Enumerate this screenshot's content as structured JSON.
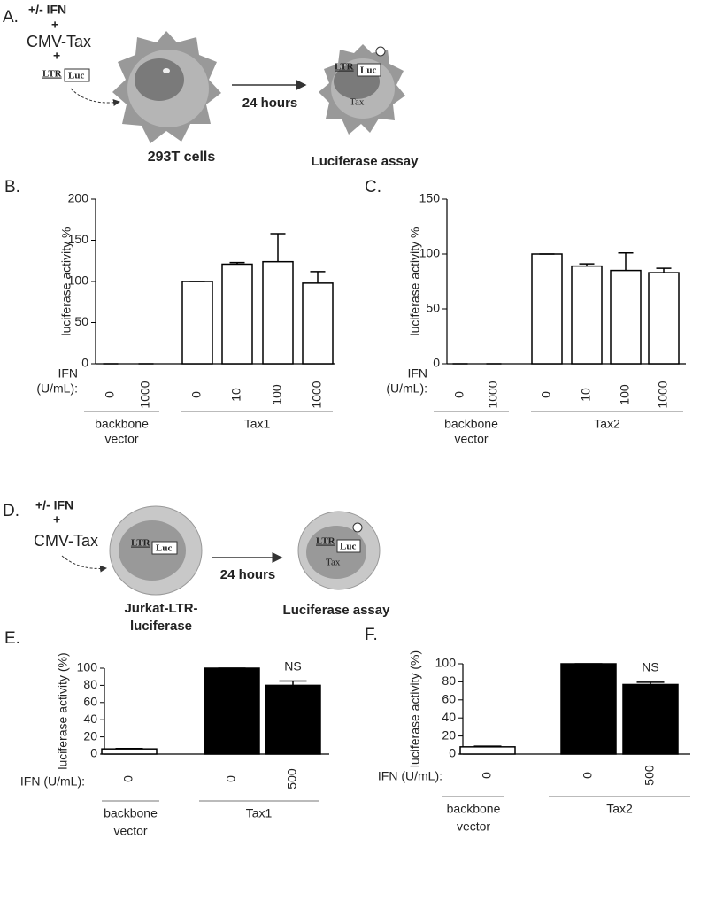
{
  "diagram_a": {
    "label": "A.",
    "ifn": "+/- IFN",
    "plus1": "+",
    "plasmid": "CMV-Tax",
    "plus2": "+",
    "ltr": "LTR",
    "luc": "Luc",
    "time": "24 hours",
    "cell": "293T cells",
    "assay": "Luciferase assay",
    "ltr2": "LTR",
    "luc2": "Luc",
    "tax": "Tax"
  },
  "diagram_d": {
    "label": "D.",
    "ifn": "+/- IFN",
    "plus1": "+",
    "plasmid": "CMV-Tax",
    "ltr": "LTR",
    "luc": "Luc",
    "time": "24 hours",
    "cell": [
      "Jurkat-LTR-",
      "luciferase"
    ],
    "assay": "Luciferase assay",
    "ltr2": "LTR",
    "luc2": "Luc",
    "tax": "Tax"
  },
  "chart_data": [
    {
      "type": "bar",
      "panel": "B.",
      "ylabel": "luciferase activity %",
      "x_prefix": [
        "IFN",
        "(U/mL):"
      ],
      "ylim": [
        0,
        200
      ],
      "yticks": [
        0,
        50,
        100,
        150,
        200
      ],
      "edgecolor": "#000000",
      "groups": [
        {
          "name": [
            "backbone",
            "vector"
          ],
          "categories": [
            "0",
            "1000"
          ],
          "values": [
            0,
            0
          ],
          "errors": [
            0,
            0
          ],
          "colors": [
            "#ffffff",
            "#ffffff"
          ]
        },
        {
          "name": [
            "Tax1"
          ],
          "categories": [
            "0",
            "10",
            "100",
            "1000"
          ],
          "values": [
            100,
            121,
            124,
            98
          ],
          "errors": [
            0,
            2,
            34,
            14
          ],
          "colors": [
            "#ffffff",
            "#ffffff",
            "#ffffff",
            "#ffffff"
          ]
        }
      ]
    },
    {
      "type": "bar",
      "panel": "C.",
      "ylabel": "luciferase activity %",
      "x_prefix": [
        "IFN",
        "(U/mL):"
      ],
      "ylim": [
        0,
        150
      ],
      "yticks": [
        0,
        50,
        100,
        150
      ],
      "edgecolor": "#000000",
      "groups": [
        {
          "name": [
            "backbone",
            "vector"
          ],
          "categories": [
            "0",
            "1000"
          ],
          "values": [
            0,
            0
          ],
          "errors": [
            0,
            0
          ],
          "colors": [
            "#ffffff",
            "#ffffff"
          ]
        },
        {
          "name": [
            "Tax2"
          ],
          "categories": [
            "0",
            "10",
            "100",
            "1000"
          ],
          "values": [
            100,
            89,
            85,
            83
          ],
          "errors": [
            0,
            2,
            16,
            4
          ],
          "colors": [
            "#ffffff",
            "#ffffff",
            "#ffffff",
            "#ffffff"
          ]
        }
      ]
    },
    {
      "type": "bar",
      "panel": "E.",
      "ylabel": "luciferase activity  (%)",
      "x_prefix": [
        "IFN (U/mL):"
      ],
      "ylim": [
        0,
        100
      ],
      "yticks": [
        0,
        20,
        40,
        60,
        80,
        100
      ],
      "edgecolor": "#000000",
      "groups": [
        {
          "name": [
            "backbone",
            "vector"
          ],
          "categories": [
            "0"
          ],
          "values": [
            6
          ],
          "errors": [
            0.5
          ],
          "colors": [
            "#ffffff"
          ]
        },
        {
          "name": [
            "Tax1"
          ],
          "categories": [
            "0",
            "500"
          ],
          "values": [
            100,
            80
          ],
          "errors": [
            0,
            5
          ],
          "colors": [
            "#000000",
            "#000000"
          ],
          "notes": [
            null,
            "NS"
          ]
        }
      ]
    },
    {
      "type": "bar",
      "panel": "F.",
      "ylabel": "luciferase activity  (%)",
      "x_prefix": [
        "IFN (U/mL):"
      ],
      "ylim": [
        0,
        100
      ],
      "yticks": [
        0,
        20,
        40,
        60,
        80,
        100
      ],
      "edgecolor": "#000000",
      "groups": [
        {
          "name": [
            "backbone",
            "vector"
          ],
          "categories": [
            "0"
          ],
          "values": [
            8
          ],
          "errors": [
            0.7
          ],
          "colors": [
            "#ffffff"
          ]
        },
        {
          "name": [
            "Tax2"
          ],
          "categories": [
            "0",
            "500"
          ],
          "values": [
            100,
            77
          ],
          "errors": [
            0,
            2.5
          ],
          "colors": [
            "#000000",
            "#000000"
          ],
          "notes": [
            null,
            "NS"
          ]
        }
      ]
    }
  ]
}
